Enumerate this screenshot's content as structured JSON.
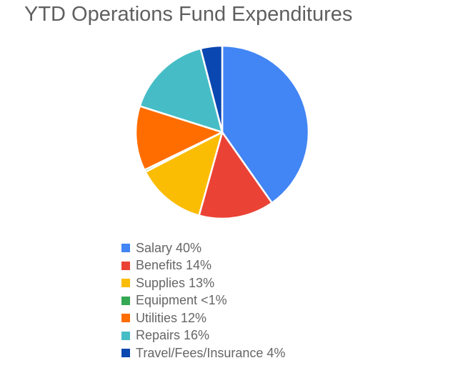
{
  "chart_data": {
    "type": "pie",
    "title": "YTD Operations Fund Expenditures",
    "legend_position": "bottom",
    "slices": [
      {
        "label": "Salary",
        "value": 40,
        "display": "40%",
        "color": "#4285f4"
      },
      {
        "label": "Benefits",
        "value": 14,
        "display": "14%",
        "color": "#ea4335"
      },
      {
        "label": "Supplies",
        "value": 13,
        "display": "13%",
        "color": "#fbbc04"
      },
      {
        "label": "Equipment",
        "value": 0.4,
        "display": "<1%",
        "color": "#34a853"
      },
      {
        "label": "Utilities",
        "value": 12,
        "display": "12%",
        "color": "#ff6d01"
      },
      {
        "label": "Repairs",
        "value": 16,
        "display": "16%",
        "color": "#46bdc6"
      },
      {
        "label": "Travel/Fees/Insurance",
        "value": 4,
        "display": "4%",
        "color": "#0b47b0"
      }
    ]
  },
  "legend": [
    {
      "text": "Salary 40%",
      "color": "#4285f4"
    },
    {
      "text": "Benefits 14%",
      "color": "#ea4335"
    },
    {
      "text": "Supplies 13%",
      "color": "#fbbc04"
    },
    {
      "text": "Equipment <1%",
      "color": "#34a853"
    },
    {
      "text": "Utilities 12%",
      "color": "#ff6d01"
    },
    {
      "text": "Repairs 16%",
      "color": "#46bdc6"
    },
    {
      "text": "Travel/Fees/Insurance 4%",
      "color": "#0b47b0"
    }
  ]
}
